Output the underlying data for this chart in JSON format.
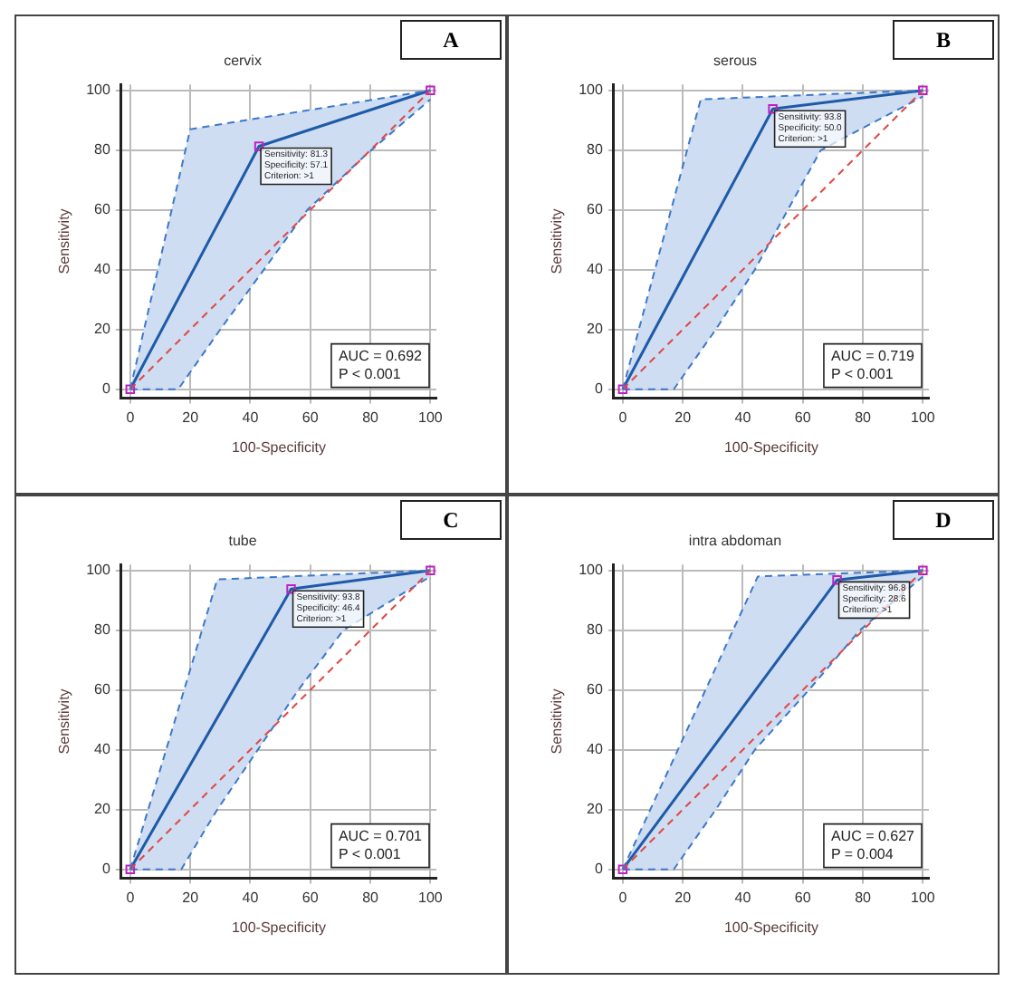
{
  "chart_data": [
    {
      "type": "line",
      "title": "cervix",
      "xlabel": "100-Specificity",
      "ylabel": "Sensitivity",
      "xlim": [
        -3,
        102
      ],
      "ylim": [
        -3,
        102
      ],
      "xticks": [
        0,
        20,
        40,
        60,
        80,
        100
      ],
      "yticks": [
        0,
        20,
        40,
        60,
        80,
        100
      ],
      "grid": true,
      "series": [
        {
          "color": "#1f5aa8",
          "x": [
            0,
            42.9,
            100
          ],
          "values": [
            0,
            81.3,
            100
          ],
          "line_style": "solid",
          "marker": "square"
        },
        {
          "color": "#3c78c8",
          "x": [
            0,
            20,
            100
          ],
          "values": [
            0,
            87,
            100
          ],
          "line_style": "dashed",
          "marker": "none"
        },
        {
          "color": "#3c78c8",
          "x": [
            0,
            16,
            30,
            59,
            78,
            100
          ],
          "values": [
            0,
            0,
            20,
            60,
            78,
            97
          ],
          "line_style": "dashed",
          "marker": "none"
        },
        {
          "color": "#e04848",
          "x": [
            0,
            100
          ],
          "values": [
            0,
            100
          ],
          "line_style": "dashed",
          "marker": "none"
        }
      ],
      "annotations": [
        "A",
        "AUC = 0.692",
        "P < 0.001",
        {
          "text": "Sensitivity: 81.3",
          "x": 42.9,
          "y": 81.3
        },
        {
          "text": "Specificity: 57.1",
          "x": 42.9,
          "y": 81.3
        },
        {
          "text": "Criterion: >1",
          "x": 42.9,
          "y": 81.3
        }
      ]
    },
    {
      "type": "line",
      "title": "serous",
      "xlabel": "100-Specificity",
      "ylabel": "Sensitivity",
      "xlim": [
        -3,
        102
      ],
      "ylim": [
        -3,
        102
      ],
      "xticks": [
        0,
        20,
        40,
        60,
        80,
        100
      ],
      "yticks": [
        0,
        20,
        40,
        60,
        80,
        100
      ],
      "grid": true,
      "series": [
        {
          "color": "#1f5aa8",
          "x": [
            0,
            50,
            100
          ],
          "values": [
            0,
            93.8,
            100
          ],
          "line_style": "solid",
          "marker": "square"
        },
        {
          "color": "#3c78c8",
          "x": [
            0,
            26,
            100
          ],
          "values": [
            0,
            97,
            100
          ],
          "line_style": "dashed",
          "marker": "none"
        },
        {
          "color": "#3c78c8",
          "x": [
            0,
            17,
            31,
            44,
            66,
            100
          ],
          "values": [
            0,
            0,
            20,
            40,
            80,
            98
          ],
          "line_style": "dashed",
          "marker": "none"
        },
        {
          "color": "#e04848",
          "x": [
            0,
            100
          ],
          "values": [
            0,
            100
          ],
          "line_style": "dashed",
          "marker": "none"
        }
      ],
      "annotations": [
        "B",
        "AUC = 0.719",
        "P < 0.001",
        {
          "text": "Sensitivity: 93.8",
          "x": 50,
          "y": 93.8
        },
        {
          "text": "Specificity: 50.0",
          "x": 50,
          "y": 93.8
        },
        {
          "text": "Criterion: >1",
          "x": 50,
          "y": 93.8
        }
      ]
    },
    {
      "type": "line",
      "title": "tube",
      "xlabel": "100-Specificity",
      "ylabel": "Sensitivity",
      "xlim": [
        -3,
        102
      ],
      "ylim": [
        -3,
        102
      ],
      "xticks": [
        0,
        20,
        40,
        60,
        80,
        100
      ],
      "yticks": [
        0,
        20,
        40,
        60,
        80,
        100
      ],
      "grid": true,
      "series": [
        {
          "color": "#1f5aa8",
          "x": [
            0,
            53.6,
            100
          ],
          "values": [
            0,
            93.8,
            100
          ],
          "line_style": "solid",
          "marker": "square"
        },
        {
          "color": "#3c78c8",
          "x": [
            0,
            29,
            100
          ],
          "values": [
            0,
            97,
            100
          ],
          "line_style": "dashed",
          "marker": "none"
        },
        {
          "color": "#3c78c8",
          "x": [
            0,
            17,
            29,
            56,
            71,
            100
          ],
          "values": [
            0,
            0,
            20,
            60,
            80,
            98
          ],
          "line_style": "dashed",
          "marker": "none"
        },
        {
          "color": "#e04848",
          "x": [
            0,
            100
          ],
          "values": [
            0,
            100
          ],
          "line_style": "dashed",
          "marker": "none"
        }
      ],
      "annotations": [
        "C",
        "AUC = 0.701",
        "P < 0.001",
        {
          "text": "Sensitivity: 93.8",
          "x": 53.6,
          "y": 93.8
        },
        {
          "text": "Specificity: 46.4",
          "x": 53.6,
          "y": 93.8
        },
        {
          "text": "Criterion: >1",
          "x": 53.6,
          "y": 93.8
        }
      ]
    },
    {
      "type": "line",
      "title": "intra abdoman",
      "xlabel": "100-Specificity",
      "ylabel": "Sensitivity",
      "xlim": [
        -3,
        102
      ],
      "ylim": [
        -3,
        102
      ],
      "xticks": [
        0,
        20,
        40,
        60,
        80,
        100
      ],
      "yticks": [
        0,
        20,
        40,
        60,
        80,
        100
      ],
      "grid": true,
      "series": [
        {
          "color": "#1f5aa8",
          "x": [
            0,
            71.4,
            100
          ],
          "values": [
            0,
            96.8,
            100
          ],
          "line_style": "solid",
          "marker": "square"
        },
        {
          "color": "#3c78c8",
          "x": [
            0,
            45,
            100
          ],
          "values": [
            0,
            98,
            100
          ],
          "line_style": "dashed",
          "marker": "none"
        },
        {
          "color": "#3c78c8",
          "x": [
            0,
            17,
            31,
            44,
            62,
            79,
            100
          ],
          "values": [
            0,
            0,
            20,
            40,
            60,
            80,
            98
          ],
          "line_style": "dashed",
          "marker": "none"
        },
        {
          "color": "#e04848",
          "x": [
            0,
            100
          ],
          "values": [
            0,
            100
          ],
          "line_style": "dashed",
          "marker": "none"
        }
      ],
      "annotations": [
        "D",
        "AUC = 0.627",
        "P = 0.004",
        {
          "text": "Sensitivity: 96.8",
          "x": 71.4,
          "y": 96.8
        },
        {
          "text": "Specificity: 28.6",
          "x": 71.4,
          "y": 96.8
        },
        {
          "text": "Criterion: >1",
          "x": 71.4,
          "y": 96.8
        }
      ]
    }
  ]
}
